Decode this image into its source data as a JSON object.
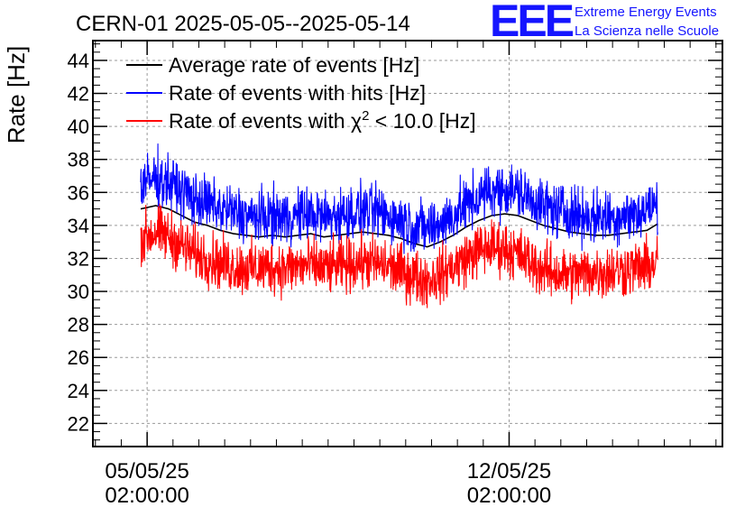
{
  "chart_data": {
    "type": "line",
    "title": "CERN-01 2025-05-05--2025-05-14",
    "ylabel": "Rate [Hz]",
    "xlabel": "",
    "ylim": [
      20.6,
      45.2
    ],
    "yticks": [
      22,
      24,
      26,
      28,
      30,
      32,
      34,
      36,
      38,
      40,
      42,
      44
    ],
    "xlim": [
      "2025-05-04 00:50:00",
      "2025-05-16 05:00:00"
    ],
    "xticks": [
      {
        "date": "05/05/25",
        "time": "02:00:00",
        "value": "2025-05-05 02:00:00"
      },
      {
        "date": "12/05/25",
        "time": "02:00:00",
        "value": "2025-05-12 02:00:00"
      }
    ],
    "grid": true,
    "legend_position": "top-left",
    "x_time_axis": [
      "2025-05-04 23:00",
      "2025-05-05 06:00",
      "2025-05-05 12:00",
      "2025-05-05 18:00",
      "2025-05-06 00:00",
      "2025-05-06 06:00",
      "2025-05-06 12:00",
      "2025-05-06 18:00",
      "2025-05-07 00:00",
      "2025-05-07 06:00",
      "2025-05-07 12:00",
      "2025-05-07 18:00",
      "2025-05-08 00:00",
      "2025-05-08 06:00",
      "2025-05-08 12:00",
      "2025-05-08 18:00",
      "2025-05-09 00:00",
      "2025-05-09 06:00",
      "2025-05-09 12:00",
      "2025-05-09 18:00",
      "2025-05-10 00:00",
      "2025-05-10 06:00",
      "2025-05-10 12:00",
      "2025-05-10 18:00",
      "2025-05-11 00:00",
      "2025-05-11 06:00",
      "2025-05-11 12:00",
      "2025-05-11 18:00",
      "2025-05-12 00:00",
      "2025-05-12 06:00",
      "2025-05-12 12:00",
      "2025-05-12 18:00",
      "2025-05-13 00:00",
      "2025-05-13 06:00",
      "2025-05-13 12:00",
      "2025-05-13 18:00",
      "2025-05-14 00:00",
      "2025-05-14 06:00",
      "2025-05-14 12:00",
      "2025-05-14 18:00",
      "2025-05-14 23:00"
    ],
    "series": [
      {
        "name": "Average rate of events [Hz]",
        "color": "#000000",
        "values": [
          35.0,
          35.2,
          35.0,
          34.6,
          34.2,
          34.0,
          33.7,
          33.5,
          33.4,
          33.3,
          33.4,
          33.3,
          33.4,
          33.5,
          33.3,
          33.4,
          33.5,
          33.6,
          33.5,
          33.4,
          33.2,
          32.9,
          32.7,
          33.0,
          33.4,
          33.9,
          34.3,
          34.6,
          34.7,
          34.6,
          34.3,
          34.0,
          33.8,
          33.6,
          33.5,
          33.4,
          33.4,
          33.5,
          33.6,
          33.7,
          34.1
        ]
      },
      {
        "name": "Rate of events with hits [Hz]",
        "color": "#0000ff",
        "values": [
          36.4,
          36.9,
          36.6,
          36.1,
          35.6,
          35.3,
          35.0,
          34.8,
          34.6,
          34.5,
          34.6,
          34.5,
          34.6,
          34.7,
          34.5,
          34.6,
          34.7,
          34.9,
          34.8,
          34.6,
          34.3,
          34.0,
          33.8,
          34.1,
          34.6,
          35.2,
          35.7,
          36.1,
          36.2,
          36.0,
          35.6,
          35.2,
          34.9,
          34.8,
          34.6,
          34.5,
          34.5,
          34.6,
          34.7,
          34.9,
          35.3
        ]
      },
      {
        "name": "Rate of events with χ2 < 10.0 [Hz]",
        "color": "#ff0000",
        "values": [
          33.2,
          33.6,
          33.3,
          32.8,
          32.3,
          32.0,
          31.7,
          31.5,
          31.4,
          31.4,
          31.5,
          31.4,
          31.5,
          31.6,
          31.4,
          31.5,
          31.6,
          31.8,
          31.7,
          31.5,
          31.2,
          30.9,
          30.7,
          31.0,
          31.5,
          32.0,
          32.5,
          32.7,
          32.6,
          32.3,
          31.8,
          31.3,
          31.1,
          31.0,
          31.1,
          31.2,
          31.2,
          31.3,
          31.4,
          31.5,
          31.8
        ]
      }
    ],
    "legend": [
      {
        "prefix": "Average rate of events [Hz]",
        "sup": "",
        "suffix": ""
      },
      {
        "prefix": "Rate of events with hits [Hz]",
        "sup": "",
        "suffix": ""
      },
      {
        "prefix": "Rate of events with χ",
        "sup": "2",
        "suffix": " < 10.0 [Hz]"
      }
    ]
  },
  "branding": {
    "logo": "EEE",
    "line1": "Extreme Energy Events",
    "line2": "La Scienza nelle Scuole",
    "color": "#1515ff"
  }
}
